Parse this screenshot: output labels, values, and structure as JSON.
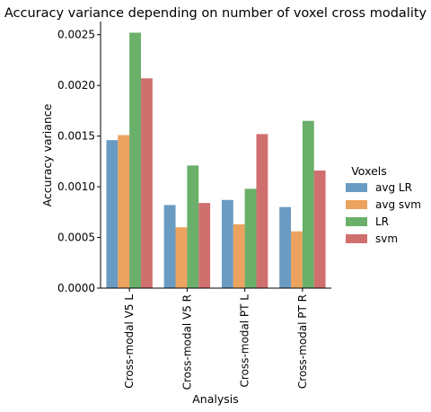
{
  "chart_data": {
    "type": "bar",
    "title": "Accuracy variance depending on number of voxel cross modality",
    "xlabel": "Analysis",
    "ylabel": "Accuracy variance",
    "categories": [
      "Cross-modal V5 L",
      "Cross-modal V5 R",
      "Cross-modal PT L",
      "Cross-modal PT R"
    ],
    "series": [
      {
        "name": "avg LR",
        "color": "#6a9bc3",
        "values": [
          0.00146,
          0.00082,
          0.00087,
          0.0008
        ]
      },
      {
        "name": "avg svm",
        "color": "#eba35f",
        "values": [
          0.00151,
          0.0006,
          0.00063,
          0.00056
        ]
      },
      {
        "name": "LR",
        "color": "#6aaf6a",
        "values": [
          0.00252,
          0.00121,
          0.00098,
          0.00165
        ]
      },
      {
        "name": "svm",
        "color": "#d0706e",
        "values": [
          0.00207,
          0.00084,
          0.00152,
          0.00116
        ]
      }
    ],
    "ylim": [
      0,
      0.00263
    ],
    "yticks": [
      0,
      0.0005,
      0.001,
      0.0015,
      0.002,
      0.0025
    ],
    "ytick_labels": [
      "0.0000",
      "0.0005",
      "0.0010",
      "0.0015",
      "0.0020",
      "0.0025"
    ],
    "legend": {
      "title": "Voxels",
      "placement": "right"
    },
    "grid": false
  }
}
